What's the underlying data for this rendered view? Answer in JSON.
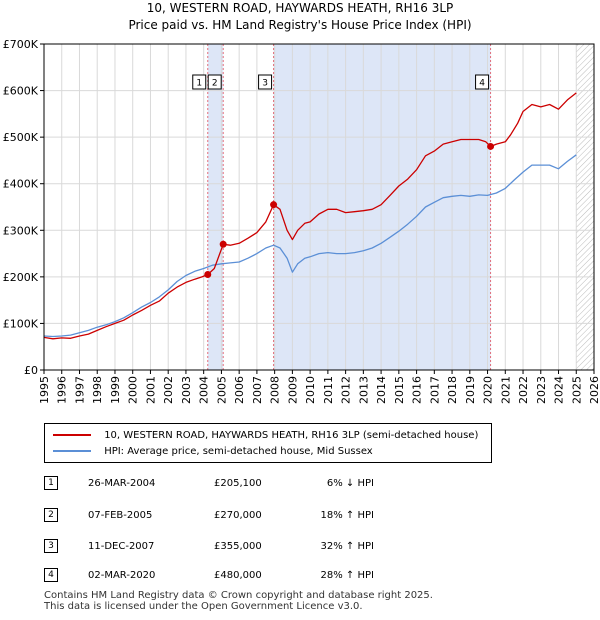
{
  "title_line1": "10, WESTERN ROAD, HAYWARDS HEATH, RH16 3LP",
  "title_line2": "Price paid vs. HM Land Registry's House Price Index (HPI)",
  "colors": {
    "property": "#cc0000",
    "hpi": "#5b8fd6",
    "shade": "#dde6f7",
    "grid": "#d9d9d9",
    "vline": "#e06c7a"
  },
  "chart_data": {
    "type": "line",
    "title": "Price paid vs. HM Land Registry's House Price Index (HPI)",
    "x_range": [
      1995,
      2026
    ],
    "ylim": [
      0,
      700000
    ],
    "y_ticks": [
      {
        "value": 0,
        "label": "£0"
      },
      {
        "value": 100000,
        "label": "£100K"
      },
      {
        "value": 200000,
        "label": "£200K"
      },
      {
        "value": 300000,
        "label": "£300K"
      },
      {
        "value": 400000,
        "label": "£400K"
      },
      {
        "value": 500000,
        "label": "£500K"
      },
      {
        "value": 600000,
        "label": "£600K"
      },
      {
        "value": 700000,
        "label": "£700K"
      }
    ],
    "x_ticks": [
      "1995",
      "1996",
      "1997",
      "1998",
      "1999",
      "2000",
      "2001",
      "2002",
      "2003",
      "2004",
      "2005",
      "2006",
      "2007",
      "2008",
      "2009",
      "2010",
      "2011",
      "2012",
      "2013",
      "2014",
      "2015",
      "2016",
      "2017",
      "2018",
      "2019",
      "2020",
      "2021",
      "2022",
      "2023",
      "2024",
      "2025",
      "2026"
    ],
    "shaded_periods": [
      [
        2004.23,
        2005.1
      ],
      [
        2007.94,
        2020.17
      ]
    ],
    "future_hatch_from": 2025.0,
    "series": [
      {
        "name": "10, WESTERN ROAD, HAYWARDS HEATH, RH16 3LP (semi-detached house)",
        "key": "property",
        "points": [
          [
            1995.0,
            70000
          ],
          [
            1995.5,
            67000
          ],
          [
            1996.0,
            69000
          ],
          [
            1996.5,
            68000
          ],
          [
            1997.0,
            73000
          ],
          [
            1997.5,
            77000
          ],
          [
            1998.0,
            85000
          ],
          [
            1998.5,
            93000
          ],
          [
            1999.0,
            100000
          ],
          [
            1999.5,
            107000
          ],
          [
            2000.0,
            118000
          ],
          [
            2000.5,
            128000
          ],
          [
            2001.0,
            139000
          ],
          [
            2001.5,
            148000
          ],
          [
            2002.0,
            165000
          ],
          [
            2002.5,
            178000
          ],
          [
            2003.0,
            188000
          ],
          [
            2003.5,
            195000
          ],
          [
            2003.9,
            200000
          ],
          [
            2004.23,
            205100
          ],
          [
            2004.6,
            218000
          ],
          [
            2005.1,
            270000
          ],
          [
            2005.5,
            268000
          ],
          [
            2006.0,
            272000
          ],
          [
            2006.5,
            283000
          ],
          [
            2007.0,
            295000
          ],
          [
            2007.5,
            318000
          ],
          [
            2007.94,
            355000
          ],
          [
            2008.3,
            345000
          ],
          [
            2008.7,
            300000
          ],
          [
            2009.0,
            280000
          ],
          [
            2009.3,
            300000
          ],
          [
            2009.7,
            315000
          ],
          [
            2010.0,
            318000
          ],
          [
            2010.5,
            335000
          ],
          [
            2011.0,
            345000
          ],
          [
            2011.5,
            345000
          ],
          [
            2012.0,
            338000
          ],
          [
            2012.5,
            340000
          ],
          [
            2013.0,
            342000
          ],
          [
            2013.5,
            345000
          ],
          [
            2014.0,
            355000
          ],
          [
            2014.5,
            375000
          ],
          [
            2015.0,
            395000
          ],
          [
            2015.5,
            410000
          ],
          [
            2016.0,
            430000
          ],
          [
            2016.5,
            460000
          ],
          [
            2017.0,
            470000
          ],
          [
            2017.5,
            485000
          ],
          [
            2018.0,
            490000
          ],
          [
            2018.5,
            495000
          ],
          [
            2019.0,
            495000
          ],
          [
            2019.5,
            495000
          ],
          [
            2019.9,
            490000
          ],
          [
            2020.17,
            480000
          ],
          [
            2020.5,
            485000
          ],
          [
            2021.0,
            490000
          ],
          [
            2021.3,
            505000
          ],
          [
            2021.7,
            530000
          ],
          [
            2022.0,
            555000
          ],
          [
            2022.5,
            570000
          ],
          [
            2023.0,
            565000
          ],
          [
            2023.5,
            570000
          ],
          [
            2024.0,
            560000
          ],
          [
            2024.5,
            580000
          ],
          [
            2025.0,
            595000
          ]
        ]
      },
      {
        "name": "HPI: Average price, semi-detached house, Mid Sussex",
        "key": "hpi",
        "points": [
          [
            1995.0,
            73000
          ],
          [
            1995.5,
            72000
          ],
          [
            1996.0,
            73000
          ],
          [
            1996.5,
            75000
          ],
          [
            1997.0,
            80000
          ],
          [
            1997.5,
            85000
          ],
          [
            1998.0,
            92000
          ],
          [
            1998.5,
            97000
          ],
          [
            1999.0,
            104000
          ],
          [
            1999.5,
            112000
          ],
          [
            2000.0,
            123000
          ],
          [
            2000.5,
            135000
          ],
          [
            2001.0,
            145000
          ],
          [
            2001.5,
            157000
          ],
          [
            2002.0,
            172000
          ],
          [
            2002.5,
            190000
          ],
          [
            2003.0,
            203000
          ],
          [
            2003.5,
            212000
          ],
          [
            2004.0,
            218000
          ],
          [
            2004.5,
            225000
          ],
          [
            2005.0,
            228000
          ],
          [
            2005.5,
            230000
          ],
          [
            2006.0,
            232000
          ],
          [
            2006.5,
            240000
          ],
          [
            2007.0,
            250000
          ],
          [
            2007.5,
            262000
          ],
          [
            2007.94,
            268000
          ],
          [
            2008.3,
            262000
          ],
          [
            2008.7,
            240000
          ],
          [
            2009.0,
            210000
          ],
          [
            2009.3,
            228000
          ],
          [
            2009.7,
            240000
          ],
          [
            2010.0,
            243000
          ],
          [
            2010.5,
            250000
          ],
          [
            2011.0,
            252000
          ],
          [
            2011.5,
            250000
          ],
          [
            2012.0,
            250000
          ],
          [
            2012.5,
            252000
          ],
          [
            2013.0,
            256000
          ],
          [
            2013.5,
            262000
          ],
          [
            2014.0,
            272000
          ],
          [
            2014.5,
            285000
          ],
          [
            2015.0,
            298000
          ],
          [
            2015.5,
            313000
          ],
          [
            2016.0,
            330000
          ],
          [
            2016.5,
            350000
          ],
          [
            2017.0,
            360000
          ],
          [
            2017.5,
            370000
          ],
          [
            2018.0,
            373000
          ],
          [
            2018.5,
            375000
          ],
          [
            2019.0,
            373000
          ],
          [
            2019.5,
            376000
          ],
          [
            2020.0,
            375000
          ],
          [
            2020.5,
            380000
          ],
          [
            2021.0,
            390000
          ],
          [
            2021.5,
            408000
          ],
          [
            2022.0,
            425000
          ],
          [
            2022.5,
            440000
          ],
          [
            2023.0,
            440000
          ],
          [
            2023.5,
            440000
          ],
          [
            2024.0,
            432000
          ],
          [
            2024.5,
            448000
          ],
          [
            2025.0,
            462000
          ]
        ]
      }
    ],
    "sales": [
      {
        "id": "1",
        "x": 2004.23,
        "price": 205100
      },
      {
        "id": "2",
        "x": 2005.1,
        "price": 270000
      },
      {
        "id": "3",
        "x": 2007.94,
        "price": 355000
      },
      {
        "id": "4",
        "x": 2020.17,
        "price": 480000
      }
    ]
  },
  "legend": {
    "property_label": "10, WESTERN ROAD, HAYWARDS HEATH, RH16 3LP (semi-detached house)",
    "hpi_label": "HPI: Average price, semi-detached house, Mid Sussex"
  },
  "table": [
    {
      "num": "1",
      "date": "26-MAR-2004",
      "price": "£205,100",
      "hpi": "6% ↓ HPI"
    },
    {
      "num": "2",
      "date": "07-FEB-2005",
      "price": "£270,000",
      "hpi": "18% ↑ HPI"
    },
    {
      "num": "3",
      "date": "11-DEC-2007",
      "price": "£355,000",
      "hpi": "32% ↑ HPI"
    },
    {
      "num": "4",
      "date": "02-MAR-2020",
      "price": "£480,000",
      "hpi": "28% ↑ HPI"
    }
  ],
  "footer_line1": "Contains HM Land Registry data © Crown copyright and database right 2025.",
  "footer_line2": "This data is licensed under the Open Government Licence v3.0."
}
